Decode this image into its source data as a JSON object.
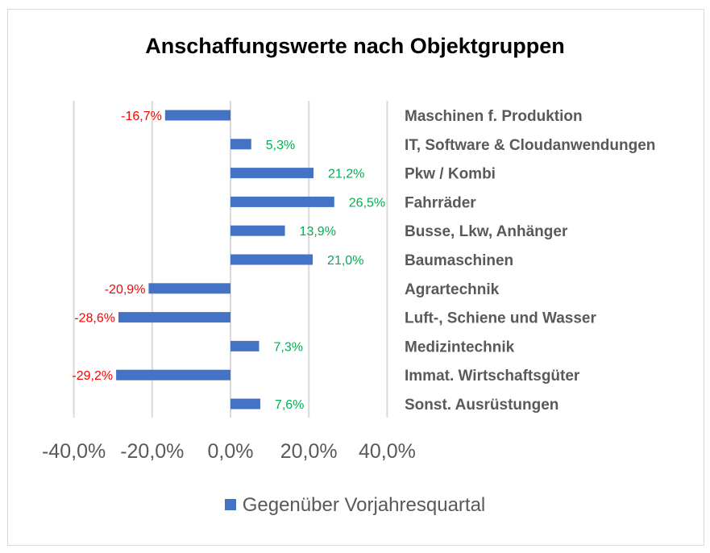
{
  "chart_data": {
    "type": "bar",
    "orientation": "horizontal",
    "title": "Anschaffungswerte nach Objektgruppen",
    "categories": [
      "Maschinen f. Produktion",
      "IT, Software & Cloudanwendungen",
      "Pkw / Kombi",
      "Fahrräder",
      "Busse, Lkw, Anhänger",
      "Baumaschinen",
      "Agrartechnik",
      "Luft-, Schiene und Wasser",
      "Medizintechnik",
      "Immat. Wirtschaftsgüter",
      "Sonst. Ausrüstungen"
    ],
    "series": [
      {
        "name": "Gegenüber Vorjahresquartal",
        "values": [
          -16.7,
          5.3,
          21.2,
          26.5,
          13.9,
          21.0,
          -20.9,
          -28.6,
          7.3,
          -29.2,
          7.6
        ],
        "value_labels": [
          "-16,7%",
          "5,3%",
          "21,2%",
          "26,5%",
          "13,9%",
          "21,0%",
          "-20,9%",
          "-28,6%",
          "7,3%",
          "-29,2%",
          "7,6%"
        ]
      }
    ],
    "xlim": [
      -40,
      40
    ],
    "xticks": [
      -40,
      -20,
      0,
      20,
      40
    ],
    "xtick_labels": [
      "-40,0%",
      "-20,0%",
      "0,0%",
      "20,0%",
      "40,0%"
    ],
    "grid": true,
    "legend_position": "bottom",
    "colors": {
      "bar": "#4472c4",
      "positive_label": "#00b050",
      "negative_label": "#ff0000",
      "category_label": "#595959",
      "gridline": "#d9d9d9"
    }
  }
}
